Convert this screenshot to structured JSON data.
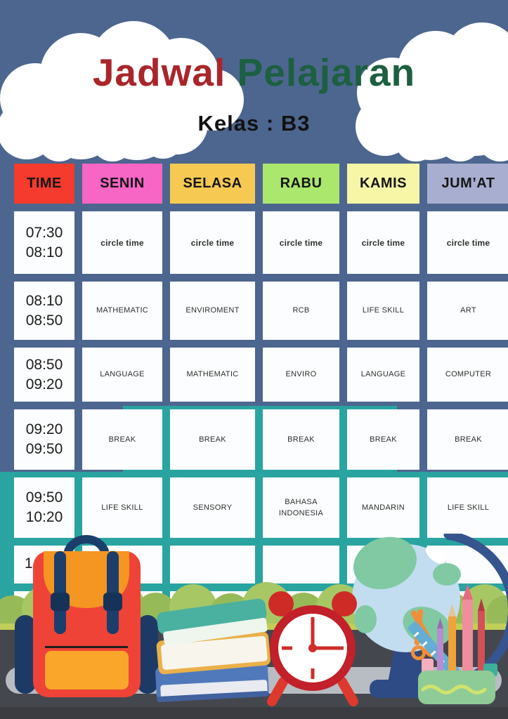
{
  "poster": {
    "title": {
      "word_red": "Jadwal",
      "word_green": "Pelajaran"
    },
    "subtitle": "Kelas : B3"
  },
  "colors": {
    "background": "#4d668f",
    "accent_teal": "#2aa4a1",
    "title_red": "#a8262a",
    "title_green": "#1d5f41",
    "cell_white": "#fcfdfe",
    "ground_dark": "#45474e",
    "bush_green": "#a7c765"
  },
  "schedule": {
    "columns": [
      {
        "label": "TIME",
        "color": "#f43b2d"
      },
      {
        "label": "SENIN",
        "color": "#f765c5"
      },
      {
        "label": "SELASA",
        "color": "#f6c952"
      },
      {
        "label": "RABU",
        "color": "#abe76c"
      },
      {
        "label": "KAMIS",
        "color": "#f6f6a6"
      },
      {
        "label": "JUM’AT",
        "color": "#a8aed0"
      }
    ],
    "rows": [
      {
        "time": [
          "07:30",
          "08:10"
        ],
        "emphasis": true,
        "subjects": [
          "circle time",
          "circle time",
          "circle time",
          "circle time",
          "circle time"
        ]
      },
      {
        "time": [
          "08:10",
          "08:50"
        ],
        "subjects": [
          "MATHEMATIC",
          "ENVIROMENT",
          "RCB",
          "LIFE SKILL",
          "ART"
        ]
      },
      {
        "time": [
          "08:50",
          "09:20"
        ],
        "subjects": [
          "LANGUAGE",
          "MATHEMATIC",
          "ENVIRO",
          "LANGUAGE",
          "COMPUTER"
        ]
      },
      {
        "time": [
          "09:20",
          "09:50"
        ],
        "subjects": [
          "BREAK",
          "BREAK",
          "BREAK",
          "BREAK",
          "BREAK"
        ]
      },
      {
        "time": [
          "09:50",
          "10:20"
        ],
        "subjects": [
          "LIFE SKILL",
          "SENSORY",
          "BAHASA\nINDONESIA",
          "MANDARIN",
          "LIFE SKILL"
        ]
      },
      {
        "time": [
          "1"
        ],
        "partial": true,
        "subjects": [
          "",
          "",
          "",
          "",
          ""
        ]
      },
      {
        "time": [],
        "subjects": [
          "",
          "",
          "",
          "",
          ""
        ]
      }
    ]
  },
  "illustrations": [
    "backpack",
    "books-stack",
    "alarm-clock",
    "globe",
    "pencil-case",
    "bushes",
    "ground"
  ]
}
